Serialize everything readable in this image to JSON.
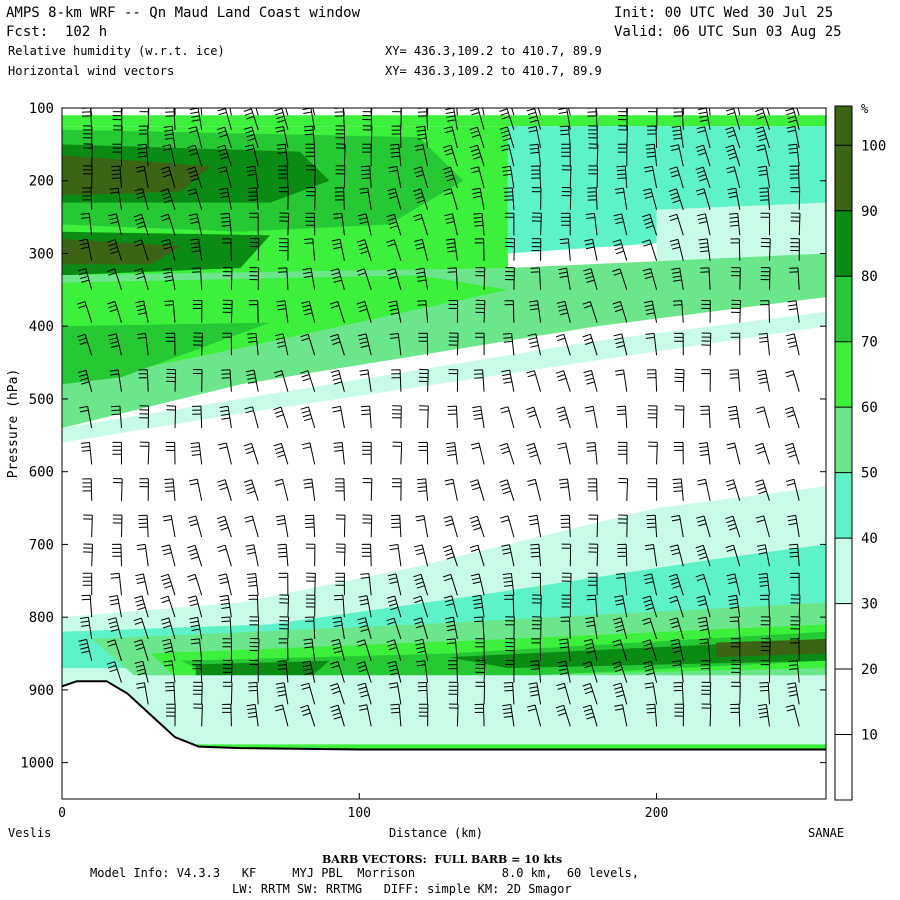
{
  "header": {
    "title": "AMPS 8-km WRF -- Qn Maud Land Coast window",
    "init": "Init: 00 UTC Wed 30 Jul 25",
    "fcst": "Fcst:  102 h",
    "valid": "Valid: 06 UTC Sun 03 Aug 25",
    "field1": "Relative humidity (w.r.t. ice)",
    "field2": "Horizontal wind vectors",
    "xy1": "XY= 436.3,109.2 to 410.7, 89.9",
    "xy2": "XY= 436.3,109.2 to 410.7, 89.9"
  },
  "footer": {
    "barb_note": "BARB VECTORS:  FULL BARB = 10 kts",
    "model_info": "Model Info: V4.3.3   KF     MYJ PBL  Morrison            8.0 km,  60 levels,",
    "model_info2": "LW: RRTM SW: RRTMG   DIFF: simple KM: 2D Smagor"
  },
  "chart_data": {
    "type": "heatmap",
    "xlabel": "Distance (km)",
    "ylabel": "Pressure (hPa)",
    "xlim": [
      0,
      257
    ],
    "ylim": [
      1050,
      100
    ],
    "x_ticks": [
      0,
      100,
      200
    ],
    "y_ticks": [
      100,
      200,
      300,
      400,
      500,
      600,
      700,
      800,
      900,
      1000
    ],
    "left_end_label": "Veslis",
    "right_end_label": "SANAE",
    "colorbar": {
      "unit": "%",
      "levels": [
        10,
        20,
        30,
        40,
        50,
        60,
        70,
        80,
        90,
        100
      ],
      "colors": [
        "#ffffff",
        "#ffffff",
        "#ffffff",
        "#c8fce8",
        "#5ef2c8",
        "#6ce68a",
        "#3cf03c",
        "#26c834",
        "#0a8c14",
        "#3c6414"
      ]
    },
    "regions": [
      {
        "value": 60,
        "pts": [
          [
            0,
            110
          ],
          [
            257,
            110
          ],
          [
            257,
            125
          ],
          [
            0,
            125
          ]
        ]
      },
      {
        "value": 45,
        "pts": [
          [
            150,
            125
          ],
          [
            257,
            125
          ],
          [
            257,
            270
          ],
          [
            150,
            300
          ]
        ]
      },
      {
        "value": 35,
        "pts": [
          [
            200,
            240
          ],
          [
            257,
            230
          ],
          [
            257,
            300
          ],
          [
            200,
            330
          ]
        ]
      },
      {
        "value": 60,
        "pts": [
          [
            0,
            125
          ],
          [
            150,
            125
          ],
          [
            150,
            330
          ],
          [
            0,
            330
          ]
        ]
      },
      {
        "value": 70,
        "pts": [
          [
            0,
            130
          ],
          [
            120,
            140
          ],
          [
            135,
            200
          ],
          [
            110,
            260
          ],
          [
            60,
            270
          ],
          [
            0,
            260
          ]
        ]
      },
      {
        "value": 80,
        "pts": [
          [
            0,
            150
          ],
          [
            80,
            160
          ],
          [
            90,
            200
          ],
          [
            70,
            230
          ],
          [
            0,
            230
          ]
        ]
      },
      {
        "value": 90,
        "pts": [
          [
            0,
            165
          ],
          [
            50,
            180
          ],
          [
            40,
            215
          ],
          [
            0,
            220
          ]
        ]
      },
      {
        "value": 80,
        "pts": [
          [
            0,
            270
          ],
          [
            70,
            275
          ],
          [
            60,
            320
          ],
          [
            0,
            330
          ]
        ]
      },
      {
        "value": 90,
        "pts": [
          [
            0,
            280
          ],
          [
            40,
            290
          ],
          [
            30,
            315
          ],
          [
            0,
            315
          ]
        ]
      },
      {
        "value": 100,
        "pts": [
          [
            0,
            290
          ],
          [
            9,
            292
          ],
          [
            9,
            310
          ],
          [
            0,
            310
          ]
        ]
      },
      {
        "value": 50,
        "pts": [
          [
            0,
            330
          ],
          [
            150,
            320
          ],
          [
            257,
            300
          ],
          [
            257,
            360
          ],
          [
            180,
            400
          ],
          [
            60,
            480
          ],
          [
            0,
            540
          ]
        ]
      },
      {
        "value": 60,
        "pts": [
          [
            0,
            340
          ],
          [
            120,
            330
          ],
          [
            150,
            350
          ],
          [
            60,
            430
          ],
          [
            0,
            480
          ]
        ]
      },
      {
        "value": 70,
        "pts": [
          [
            0,
            400
          ],
          [
            70,
            395
          ],
          [
            20,
            470
          ],
          [
            0,
            480
          ]
        ]
      },
      {
        "value": 35,
        "pts": [
          [
            0,
            540
          ],
          [
            60,
            500
          ],
          [
            180,
            420
          ],
          [
            257,
            380
          ],
          [
            257,
            400
          ],
          [
            60,
            520
          ],
          [
            0,
            560
          ]
        ]
      },
      {
        "value": 35,
        "pts": [
          [
            0,
            800
          ],
          [
            60,
            780
          ],
          [
            120,
            730
          ],
          [
            200,
            650
          ],
          [
            257,
            620
          ],
          [
            257,
            880
          ],
          [
            0,
            880
          ]
        ]
      },
      {
        "value": 45,
        "pts": [
          [
            0,
            820
          ],
          [
            70,
            810
          ],
          [
            140,
            770
          ],
          [
            220,
            720
          ],
          [
            257,
            700
          ],
          [
            257,
            870
          ],
          [
            0,
            870
          ]
        ]
      },
      {
        "value": 55,
        "pts": [
          [
            10,
            830
          ],
          [
            120,
            810
          ],
          [
            257,
            780
          ],
          [
            257,
            880
          ],
          [
            30,
            900
          ]
        ]
      },
      {
        "value": 65,
        "pts": [
          [
            30,
            850
          ],
          [
            150,
            830
          ],
          [
            257,
            810
          ],
          [
            257,
            870
          ],
          [
            40,
            890
          ]
        ]
      },
      {
        "value": 75,
        "pts": [
          [
            40,
            860
          ],
          [
            130,
            850
          ],
          [
            257,
            820
          ],
          [
            257,
            860
          ],
          [
            60,
            900
          ]
        ]
      },
      {
        "value": 85,
        "pts": [
          [
            45,
            865
          ],
          [
            90,
            860
          ],
          [
            80,
            895
          ],
          [
            45,
            895
          ]
        ]
      },
      {
        "value": 85,
        "pts": [
          [
            130,
            855
          ],
          [
            257,
            830
          ],
          [
            257,
            860
          ],
          [
            150,
            870
          ]
        ]
      },
      {
        "value": 95,
        "pts": [
          [
            220,
            835
          ],
          [
            257,
            830
          ],
          [
            257,
            850
          ],
          [
            220,
            855
          ]
        ]
      },
      {
        "value": 35,
        "pts": [
          [
            0,
            880
          ],
          [
            257,
            880
          ],
          [
            257,
            985
          ],
          [
            0,
            985
          ]
        ]
      },
      {
        "value": 65,
        "pts": [
          [
            40,
            975
          ],
          [
            257,
            975
          ],
          [
            257,
            990
          ],
          [
            40,
            990
          ]
        ]
      }
    ],
    "terrain": {
      "x": [
        0,
        5,
        15,
        22,
        30,
        38,
        46,
        60,
        100,
        150,
        200,
        257
      ],
      "p": [
        895,
        888,
        888,
        905,
        935,
        965,
        978,
        980,
        982,
        982,
        982,
        982
      ]
    },
    "barb_columns_km": [
      10,
      20,
      29,
      38,
      47,
      57,
      66,
      76,
      85,
      95,
      104,
      114,
      123,
      133,
      142,
      152,
      161,
      171,
      180,
      190,
      200,
      209,
      218,
      228,
      238,
      248
    ],
    "barb_levels_hPa": [
      110,
      130,
      155,
      180,
      210,
      240,
      275,
      310,
      350,
      395,
      440,
      490,
      540,
      590,
      640,
      690,
      730,
      770,
      800,
      830,
      860,
      890,
      920,
      950
    ]
  }
}
